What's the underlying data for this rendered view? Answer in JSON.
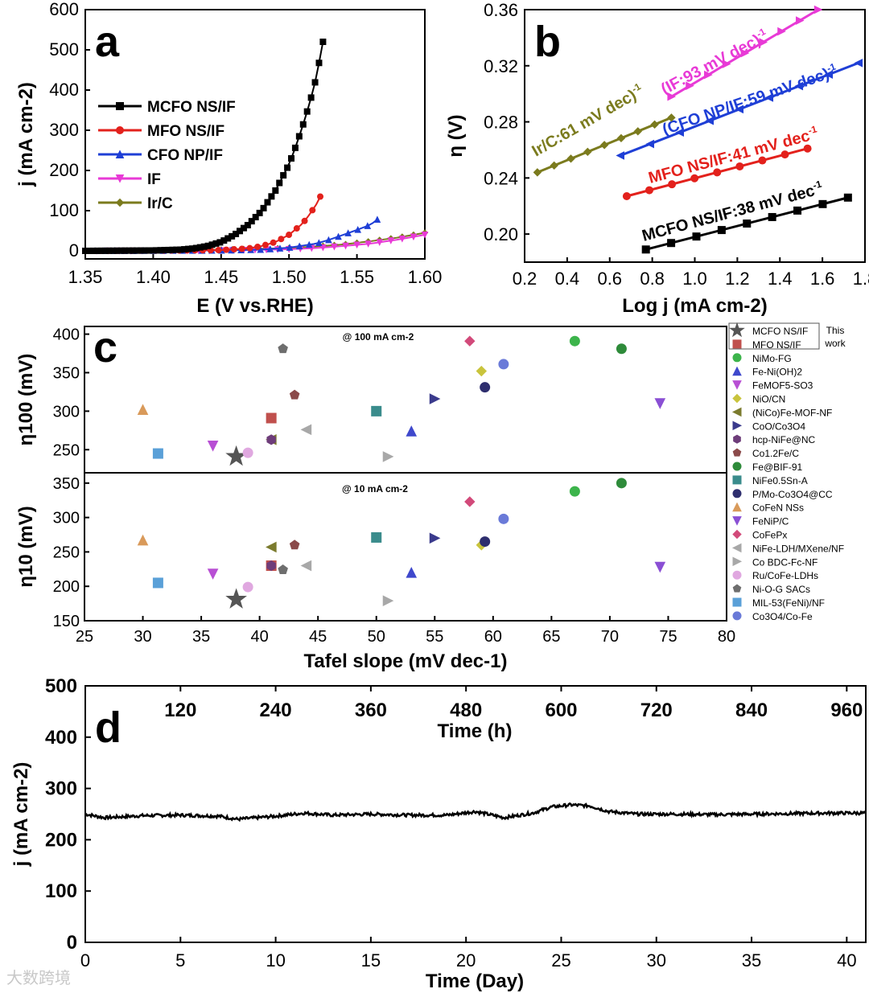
{
  "chart_data": [
    {
      "panel": "a",
      "type": "line",
      "xlabel": "E (V vs.RHE)",
      "ylabel": "j (mA cm-2)",
      "xlim": [
        1.35,
        1.6
      ],
      "ylim": [
        -20,
        600
      ],
      "xticks": [
        "1.35",
        "1.40",
        "1.45",
        "1.50",
        "1.55",
        "1.60"
      ],
      "yticks": [
        "0",
        "100",
        "200",
        "300",
        "400",
        "500",
        "600"
      ],
      "legend_position": "left",
      "series": [
        {
          "name": "MCFO NS/IF",
          "color": "#000000",
          "marker": "square",
          "x": [
            1.35,
            1.4,
            1.42,
            1.43,
            1.44,
            1.45,
            1.46,
            1.47,
            1.48,
            1.49,
            1.5,
            1.505,
            1.51,
            1.515,
            1.52,
            1.525
          ],
          "y": [
            0,
            1,
            3,
            6,
            12,
            22,
            40,
            65,
            100,
            150,
            215,
            260,
            310,
            365,
            430,
            520
          ]
        },
        {
          "name": "MFO NS/IF",
          "color": "#e3211c",
          "marker": "circle",
          "x": [
            1.35,
            1.42,
            1.45,
            1.47,
            1.48,
            1.49,
            1.5,
            1.51,
            1.515,
            1.52,
            1.523
          ],
          "y": [
            0,
            1,
            2,
            6,
            12,
            22,
            40,
            68,
            90,
            115,
            135
          ]
        },
        {
          "name": "CFO NP/IF",
          "color": "#1f3fd6",
          "marker": "triangle-up",
          "x": [
            1.35,
            1.45,
            1.48,
            1.5,
            1.52,
            1.53,
            1.54,
            1.55,
            1.56,
            1.565
          ],
          "y": [
            0,
            1,
            3,
            8,
            18,
            28,
            40,
            52,
            65,
            78
          ]
        },
        {
          "name": "IF",
          "color": "#e83ad6",
          "marker": "triangle-down",
          "x": [
            1.35,
            1.45,
            1.5,
            1.52,
            1.54,
            1.56,
            1.58,
            1.6
          ],
          "y": [
            0,
            1,
            4,
            7,
            12,
            18,
            28,
            40
          ]
        },
        {
          "name": "Ir/C",
          "color": "#7b7b1e",
          "marker": "diamond",
          "x": [
            1.35,
            1.4,
            1.45,
            1.5,
            1.52,
            1.54,
            1.56,
            1.58,
            1.6
          ],
          "y": [
            0,
            1,
            3,
            7,
            11,
            16,
            24,
            33,
            45
          ]
        }
      ]
    },
    {
      "panel": "b",
      "type": "line",
      "xlabel": "Log j (mA cm-2)",
      "ylabel": "η (V)",
      "xlim": [
        0.2,
        1.8
      ],
      "ylim": [
        0.18,
        0.36
      ],
      "xticks": [
        "0.2",
        "0.4",
        "0.6",
        "0.8",
        "1.0",
        "1.2",
        "1.4",
        "1.6",
        "1.8"
      ],
      "yticks": [
        "0.20",
        "0.24",
        "0.28",
        "0.32",
        "0.36"
      ],
      "series": [
        {
          "name": "MCFO NS/IF",
          "color": "#000000",
          "marker": "square",
          "x": [
            0.77,
            1.72
          ],
          "y": [
            0.189,
            0.226
          ],
          "annotation": "MCFO NS/IF:38 mV dec",
          "ann_sup": "-1"
        },
        {
          "name": "MFO NS/IF",
          "color": "#e3211c",
          "marker": "circle",
          "x": [
            0.68,
            1.53
          ],
          "y": [
            0.227,
            0.261
          ],
          "annotation": "MFO NS/IF:41 mV dec",
          "ann_sup": "-1"
        },
        {
          "name": "CFO NP/IF",
          "color": "#1f3fd6",
          "marker": "triangle-left",
          "x": [
            0.65,
            1.77
          ],
          "y": [
            0.256,
            0.322
          ],
          "annotation": "(CFO NP/IF:59 mV dec)",
          "ann_sup": "-1"
        },
        {
          "name": "IF",
          "color": "#e83ad6",
          "marker": "triangle-right",
          "x": [
            0.89,
            1.58
          ],
          "y": [
            0.298,
            0.36
          ],
          "annotation": "(IF:93 mV dec)",
          "ann_sup": "-1"
        },
        {
          "name": "Ir/C",
          "color": "#7b7b1e",
          "marker": "diamond",
          "x": [
            0.26,
            0.89
          ],
          "y": [
            0.244,
            0.283
          ],
          "annotation": "Ir/C:61 mV dec)",
          "ann_sup": "-1"
        }
      ]
    },
    {
      "panel": "c",
      "type": "scatter",
      "xlabel": "Tafel slope (mV dec-1)",
      "xlim": [
        25,
        80
      ],
      "xticks": [
        "25",
        "30",
        "35",
        "40",
        "45",
        "50",
        "55",
        "60",
        "65",
        "70",
        "75",
        "80"
      ],
      "top": {
        "ylabel": "η100 (mV)",
        "condition": "@ 100 mA cm-2",
        "ylim": [
          220,
          410
        ],
        "yticks": [
          "250",
          "300",
          "350",
          "400"
        ]
      },
      "bottom": {
        "ylabel": "η10 (mV)",
        "condition": "@ 10 mA cm-2",
        "ylim": [
          150,
          365
        ],
        "yticks": [
          "150",
          "200",
          "250",
          "300",
          "350"
        ]
      },
      "this_work_note": "This work",
      "points": [
        {
          "label": "MCFO NS/IF",
          "color": "#555555",
          "marker": "star",
          "x": 38,
          "y100": 241,
          "y10": 181
        },
        {
          "label": "MFO NS/IF",
          "color": "#c0504d",
          "marker": "square",
          "x": 41,
          "y100": 291,
          "y10": 230
        },
        {
          "label": "NiMo-FG",
          "color": "#3cb44b",
          "marker": "circle",
          "x": 67,
          "y100": 391,
          "y10": 338
        },
        {
          "label": "Fe-Ni(OH)2",
          "color": "#3f48cc",
          "marker": "triangle-up",
          "x": 53,
          "y100": 274,
          "y10": 220
        },
        {
          "label": "FeMOF5-SO3",
          "color": "#b84fd4",
          "marker": "triangle-down",
          "x": 36,
          "y100": 255,
          "y10": 218
        },
        {
          "label": "NiO/CN",
          "color": "#c9c43c",
          "marker": "diamond",
          "x": 59,
          "y100": 352,
          "y10": 260
        },
        {
          "label": "(NiCo)Fe-MOF-NF",
          "color": "#7b7b2e",
          "marker": "triangle-left",
          "x": 41,
          "y100": 263,
          "y10": 257
        },
        {
          "label": "CoO/Co3O4",
          "color": "#3a3a8c",
          "marker": "triangle-right",
          "x": 55,
          "y100": 316,
          "y10": 270
        },
        {
          "label": "hcp-NiFe@NC",
          "color": "#6e3d7a",
          "marker": "hexagon",
          "x": 41,
          "y100": 263,
          "y10": 230
        },
        {
          "label": "Co1.2Fe/C",
          "color": "#8b4a4a",
          "marker": "pentagon",
          "x": 43,
          "y100": 321,
          "y10": 260
        },
        {
          "label": "Fe@BIF-91",
          "color": "#2e8b3a",
          "marker": "circle",
          "x": 71,
          "y100": 381,
          "y10": 350
        },
        {
          "label": "NiFe0.5Sn-A",
          "color": "#3a8c8c",
          "marker": "square",
          "x": 50,
          "y100": 300,
          "y10": 271
        },
        {
          "label": "P/Mo-Co3O4@CC",
          "color": "#2e2e6e",
          "marker": "circle",
          "x": 59.3,
          "y100": 331,
          "y10": 265
        },
        {
          "label": "CoFeN NSs",
          "color": "#d99a5a",
          "marker": "triangle-up",
          "x": 30,
          "y100": 302,
          "y10": 267
        },
        {
          "label": "FeNiP/C",
          "color": "#8a4fd4",
          "marker": "triangle-down",
          "x": 74.3,
          "y100": 310,
          "y10": 228
        },
        {
          "label": "CoFePx",
          "color": "#d24a7a",
          "marker": "diamond",
          "x": 58,
          "y100": 391,
          "y10": 323
        },
        {
          "label": "NiFe-LDH/MXene/NF",
          "color": "#a8a8a8",
          "marker": "triangle-left",
          "x": 44,
          "y100": 276,
          "y10": 230
        },
        {
          "label": "Co BDC-Fc-NF",
          "color": "#a8a8a8",
          "marker": "triangle-right",
          "x": 51,
          "y100": 241,
          "y10": 179
        },
        {
          "label": "Ru/CoFe-LDHs",
          "color": "#e0a8e0",
          "marker": "circle",
          "x": 39,
          "y100": 246,
          "y10": 199
        },
        {
          "label": "Ni-O-G SACs",
          "color": "#6e6e6e",
          "marker": "pentagon",
          "x": 42,
          "y100": 381,
          "y10": 224
        },
        {
          "label": "MIL-53(FeNi)/NF",
          "color": "#5aa0d8",
          "marker": "square",
          "x": 31.3,
          "y100": 245,
          "y10": 205
        },
        {
          "label": "Co3O4/Co-Fe",
          "color": "#6a7ad8",
          "marker": "circle",
          "x": 60.9,
          "y100": 361,
          "y10": 298
        }
      ]
    },
    {
      "panel": "d",
      "type": "line",
      "xlabel": "Time (Day)",
      "x2label": "Time (h)",
      "ylabel": "j (mA cm-2)",
      "xlim": [
        0,
        41
      ],
      "ylim": [
        0,
        500
      ],
      "xticks": [
        "0",
        "5",
        "10",
        "15",
        "20",
        "25",
        "30",
        "35",
        "40"
      ],
      "x2ticks": [
        "120",
        "240",
        "360",
        "480",
        "600",
        "720",
        "840",
        "960"
      ],
      "yticks": [
        "0",
        "100",
        "200",
        "300",
        "400",
        "500"
      ],
      "series": [
        {
          "name": "",
          "color": "#000000",
          "x": [
            0,
            1,
            3,
            5,
            7,
            8,
            10,
            11.5,
            13,
            15,
            17,
            19,
            20.5,
            22,
            23.5,
            24.5,
            25.5,
            26.5,
            27.5,
            29,
            31,
            33,
            35,
            37,
            39,
            41
          ],
          "y": [
            250,
            243,
            247,
            248,
            246,
            240,
            246,
            252,
            248,
            250,
            248,
            248,
            255,
            243,
            252,
            264,
            268,
            266,
            255,
            250,
            250,
            249,
            250,
            251,
            252,
            252
          ]
        }
      ]
    }
  ],
  "watermark": "大数跨境"
}
